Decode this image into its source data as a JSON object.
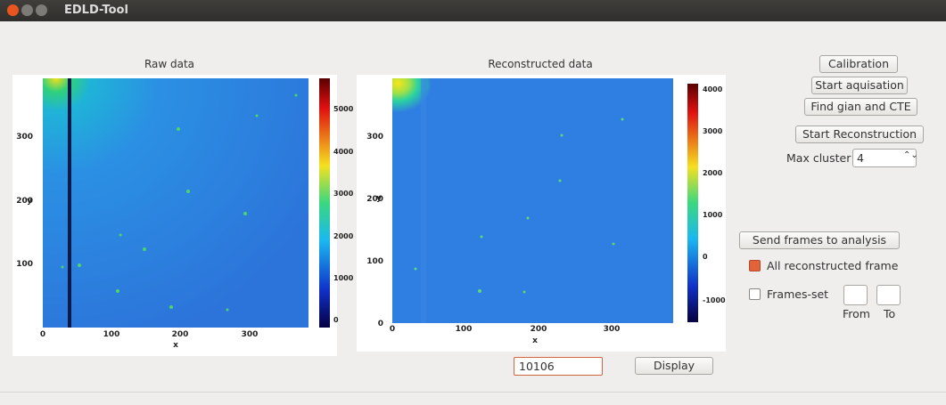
{
  "window": {
    "title": "EDLD-Tool"
  },
  "plots": [
    {
      "title": "Raw data",
      "xlabel": "x",
      "ylabel": "y",
      "xticks": [
        "0",
        "100",
        "200",
        "300"
      ],
      "yticks": [
        "100",
        "200",
        "300"
      ],
      "colorbar_ticks": [
        "0",
        "1000",
        "2000",
        "3000",
        "4000",
        "5000"
      ]
    },
    {
      "title": "Reconstructed data",
      "xlabel": "x",
      "ylabel": "y",
      "xticks": [
        "0",
        "100",
        "200",
        "300"
      ],
      "yticks": [
        "0",
        "100",
        "200",
        "300"
      ],
      "colorbar_ticks": [
        "-1000",
        "0",
        "1000",
        "2000",
        "3000",
        "4000"
      ]
    }
  ],
  "frame_input": "10106",
  "display_button": "Display",
  "buttons": [
    "Calibration",
    "Start aquisation",
    "Find gian and CTE",
    "Start Reconstruction"
  ],
  "max_cluster": {
    "label": "Max cluster size",
    "value": "4"
  },
  "send_button": "Send frames to analysis",
  "all_frames": {
    "label": "All reconstructed frame",
    "checked": true
  },
  "frames_set": {
    "label": "Frames-set",
    "checked": false
  },
  "from_label": "From",
  "to_label": "To"
}
